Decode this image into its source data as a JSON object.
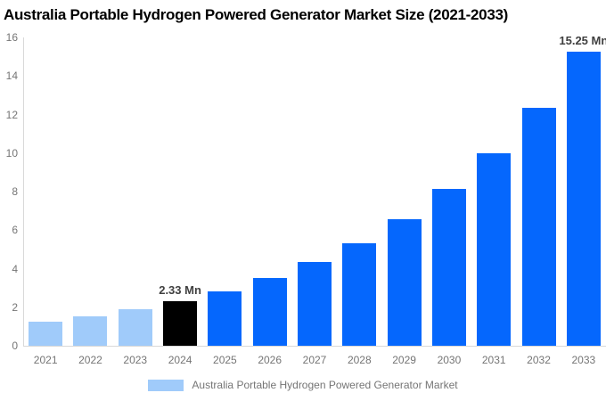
{
  "title": "Australia Portable Hydrogen Powered Generator Market Size (2021-2033)",
  "legend": {
    "label": "Australia Portable Hydrogen Powered Generator Market",
    "swatch_color": "#A0CBFA"
  },
  "colors": {
    "historical_bar": "#A0CBFA",
    "base_year_bar": "#000000",
    "forecast_bar": "#0567FD",
    "axis_line": "#D8D8D8",
    "tick_text": "#757575",
    "value_label_text": "#404040",
    "title_text": "#000000",
    "background": "#FFFFFF"
  },
  "chart_data": {
    "type": "bar",
    "title": "Australia Portable Hydrogen Powered Generator Market Size (2021-2033)",
    "xlabel": "",
    "ylabel": "",
    "unit": "Mn",
    "ylim": [
      0,
      16
    ],
    "y_ticks": [
      0,
      2,
      4,
      6,
      8,
      10,
      12,
      14,
      16
    ],
    "grid": false,
    "legend_position": "bottom",
    "series_name": "Australia Portable Hydrogen Powered Generator Market",
    "categories": [
      "2021",
      "2022",
      "2023",
      "2024",
      "2025",
      "2026",
      "2027",
      "2028",
      "2029",
      "2030",
      "2031",
      "2032",
      "2033"
    ],
    "values": [
      1.25,
      1.51,
      1.88,
      2.33,
      2.84,
      3.51,
      4.33,
      5.33,
      6.58,
      8.12,
      10.01,
      12.36,
      15.25
    ],
    "bar_colors": [
      "#A0CBFA",
      "#A0CBFA",
      "#A0CBFA",
      "#000000",
      "#0567FD",
      "#0567FD",
      "#0567FD",
      "#0567FD",
      "#0567FD",
      "#0567FD",
      "#0567FD",
      "#0567FD",
      "#0567FD"
    ],
    "bar_labels": [
      "",
      "",
      "",
      "2.33 Mn",
      "",
      "",
      "",
      "",
      "",
      "",
      "",
      "",
      "15.25 Mn"
    ]
  }
}
